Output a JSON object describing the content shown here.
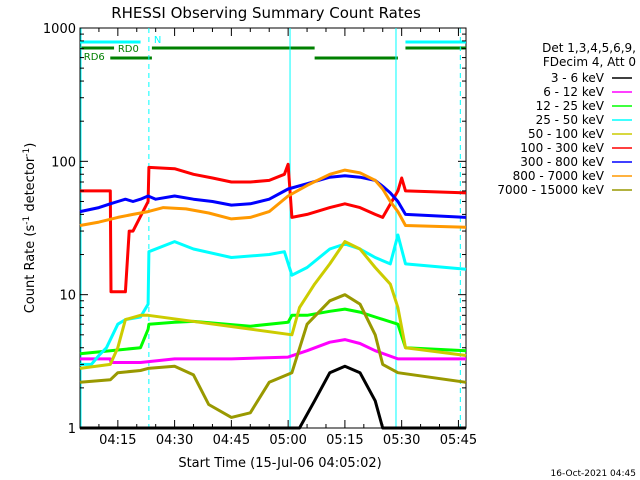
{
  "chart_data": {
    "type": "line",
    "title": "RHESSI Observing Summary Count Rates",
    "xlabel": "Start Time (15-Jul-06 04:05:02)",
    "ylabel_main": "Count Rate (s",
    "ylabel_sup1": "-1",
    "ylabel_mid": " detector",
    "ylabel_sup2": "-1",
    "ylabel_end": ")",
    "y_scale": "log",
    "ylim": [
      1,
      1000
    ],
    "xlim_minutes": [
      0,
      102
    ],
    "x_ticks": [
      {
        "min": 10,
        "label": "04:15"
      },
      {
        "min": 25,
        "label": "04:30"
      },
      {
        "min": 40,
        "label": "04:45"
      },
      {
        "min": 55,
        "label": "05:00"
      },
      {
        "min": 70,
        "label": "05:15"
      },
      {
        "min": 85,
        "label": "05:30"
      },
      {
        "min": 100,
        "label": "05:45"
      }
    ],
    "y_ticks": [
      {
        "v": 1,
        "label": "1"
      },
      {
        "v": 10,
        "label": "10"
      },
      {
        "v": 100,
        "label": "100"
      },
      {
        "v": 1000,
        "label": "1000"
      }
    ],
    "legend_header": [
      "Det 1,3,4,5,6,9,",
      "FDecim 4, Att 0"
    ],
    "legend_position": "right",
    "footer_date": "16-Oct-2021 04:45",
    "flags": [
      {
        "label": "N",
        "color": "#00ffff"
      },
      {
        "label": "RD0",
        "color": "#008000"
      },
      {
        "label": "RD6",
        "color": "#008000"
      }
    ],
    "series": [
      {
        "name": "3 - 6 keV",
        "color": "#000000",
        "points": [
          [
            0,
            1
          ],
          [
            53,
            1
          ],
          [
            58,
            1
          ],
          [
            62,
            1.6
          ],
          [
            66,
            2.6
          ],
          [
            70,
            2.9
          ],
          [
            74,
            2.6
          ],
          [
            78,
            1.6
          ],
          [
            80,
            1
          ],
          [
            102,
            1
          ]
        ]
      },
      {
        "name": "6 - 12 keV",
        "color": "#ff00ff",
        "points": [
          [
            0,
            3.3
          ],
          [
            8,
            3.3
          ],
          [
            8.2,
            3.1
          ],
          [
            16,
            3.1
          ],
          [
            25,
            3.3
          ],
          [
            40,
            3.3
          ],
          [
            55,
            3.4
          ],
          [
            60,
            3.8
          ],
          [
            66,
            4.4
          ],
          [
            70,
            4.6
          ],
          [
            74,
            4.3
          ],
          [
            78,
            3.8
          ],
          [
            84,
            3.3
          ],
          [
            102,
            3.3
          ]
        ]
      },
      {
        "name": "12 - 25 keV",
        "color": "#00ff00",
        "points": [
          [
            0,
            3.6
          ],
          [
            16,
            4
          ],
          [
            18,
            5.5
          ],
          [
            18.2,
            6
          ],
          [
            25,
            6.2
          ],
          [
            30,
            6.3
          ],
          [
            45,
            5.8
          ],
          [
            55,
            6.2
          ],
          [
            56,
            7
          ],
          [
            60,
            7
          ],
          [
            66,
            7.5
          ],
          [
            70,
            7.8
          ],
          [
            74,
            7.4
          ],
          [
            78,
            6.8
          ],
          [
            84,
            6
          ],
          [
            86,
            4
          ],
          [
            102,
            3.8
          ]
        ]
      },
      {
        "name": "25 - 50 keV",
        "color": "#00ffff",
        "points": [
          [
            0,
            3
          ],
          [
            3,
            3
          ],
          [
            5,
            3.5
          ],
          [
            7,
            4
          ],
          [
            10,
            6
          ],
          [
            12,
            6.5
          ],
          [
            16,
            6.8
          ],
          [
            18,
            8.5
          ],
          [
            18.2,
            21
          ],
          [
            25,
            25
          ],
          [
            30,
            22
          ],
          [
            40,
            19
          ],
          [
            50,
            20
          ],
          [
            54,
            21
          ],
          [
            56,
            14
          ],
          [
            60,
            16
          ],
          [
            66,
            22
          ],
          [
            70,
            24
          ],
          [
            74,
            22
          ],
          [
            78,
            19
          ],
          [
            82,
            17
          ],
          [
            84,
            28
          ],
          [
            86,
            17
          ],
          [
            102,
            15.5
          ]
        ]
      },
      {
        "name": "50 - 100 keV",
        "color": "#cccc00",
        "points": [
          [
            0,
            2.8
          ],
          [
            8,
            3
          ],
          [
            10,
            4
          ],
          [
            12,
            6.5
          ],
          [
            16,
            7
          ],
          [
            18,
            7
          ],
          [
            56,
            5
          ],
          [
            58,
            8
          ],
          [
            62,
            12
          ],
          [
            66,
            17
          ],
          [
            70,
            25
          ],
          [
            74,
            22
          ],
          [
            78,
            16
          ],
          [
            82,
            12
          ],
          [
            84,
            8
          ],
          [
            86,
            4
          ],
          [
            102,
            3.5
          ]
        ]
      },
      {
        "name": "100 - 300 keV",
        "color": "#ff0000",
        "points": [
          [
            0,
            60
          ],
          [
            8,
            60
          ],
          [
            8.2,
            10.5
          ],
          [
            12,
            10.5
          ],
          [
            13,
            30
          ],
          [
            14,
            30
          ],
          [
            18,
            50
          ],
          [
            18.2,
            90
          ],
          [
            25,
            88
          ],
          [
            30,
            80
          ],
          [
            35,
            75
          ],
          [
            40,
            70
          ],
          [
            45,
            70
          ],
          [
            50,
            72
          ],
          [
            54,
            80
          ],
          [
            55,
            95
          ],
          [
            56,
            38
          ],
          [
            60,
            40
          ],
          [
            66,
            45
          ],
          [
            70,
            48
          ],
          [
            74,
            45
          ],
          [
            78,
            40
          ],
          [
            80,
            38
          ],
          [
            84,
            60
          ],
          [
            85,
            75
          ],
          [
            86,
            60
          ],
          [
            102,
            58
          ]
        ]
      },
      {
        "name": "300 - 800 keV",
        "color": "#0000ff",
        "points": [
          [
            0,
            42
          ],
          [
            5,
            45
          ],
          [
            8,
            48
          ],
          [
            10,
            50
          ],
          [
            12,
            52
          ],
          [
            14,
            50
          ],
          [
            16,
            52
          ],
          [
            18,
            55
          ],
          [
            20,
            52
          ],
          [
            25,
            55
          ],
          [
            30,
            52
          ],
          [
            35,
            50
          ],
          [
            40,
            47
          ],
          [
            45,
            48
          ],
          [
            50,
            52
          ],
          [
            55,
            62
          ],
          [
            60,
            68
          ],
          [
            66,
            76
          ],
          [
            70,
            78
          ],
          [
            74,
            76
          ],
          [
            78,
            72
          ],
          [
            80,
            65
          ],
          [
            82,
            58
          ],
          [
            84,
            50
          ],
          [
            86,
            40
          ],
          [
            102,
            38
          ]
        ]
      },
      {
        "name": "800 - 7000 keV",
        "color": "#ff9900",
        "points": [
          [
            0,
            33
          ],
          [
            5,
            35
          ],
          [
            10,
            38
          ],
          [
            14,
            40
          ],
          [
            18,
            42
          ],
          [
            22,
            45
          ],
          [
            28,
            44
          ],
          [
            34,
            41
          ],
          [
            40,
            37
          ],
          [
            45,
            38
          ],
          [
            50,
            42
          ],
          [
            55,
            55
          ],
          [
            60,
            66
          ],
          [
            66,
            80
          ],
          [
            70,
            86
          ],
          [
            74,
            82
          ],
          [
            78,
            72
          ],
          [
            80,
            62
          ],
          [
            82,
            50
          ],
          [
            84,
            42
          ],
          [
            86,
            33
          ],
          [
            102,
            32
          ]
        ]
      },
      {
        "name": "7000 - 15000 keV",
        "color": "#999900",
        "points": [
          [
            0,
            2.2
          ],
          [
            8,
            2.3
          ],
          [
            10,
            2.6
          ],
          [
            16,
            2.7
          ],
          [
            18,
            2.8
          ],
          [
            25,
            2.9
          ],
          [
            30,
            2.5
          ],
          [
            34,
            1.5
          ],
          [
            40,
            1.2
          ],
          [
            45,
            1.3
          ],
          [
            50,
            2.2
          ],
          [
            56,
            2.6
          ],
          [
            60,
            6
          ],
          [
            66,
            9
          ],
          [
            70,
            10
          ],
          [
            74,
            8.5
          ],
          [
            78,
            5
          ],
          [
            80,
            3
          ],
          [
            84,
            2.6
          ],
          [
            102,
            2.2
          ]
        ]
      }
    ]
  }
}
